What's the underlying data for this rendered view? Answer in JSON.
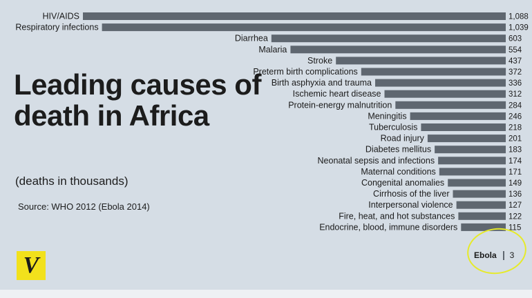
{
  "title": "Leading causes of death in Africa",
  "subtitle": "(deaths in thousands)",
  "source": "Source: WHO 2012 (Ebola 2014)",
  "logo_letter": "V",
  "ebola": {
    "label": "Ebola",
    "value": "3"
  },
  "colors": {
    "background": "#d5dde5",
    "bar": "#5f6770",
    "highlight": "#e6ea2a",
    "logo": "#f2e11c"
  },
  "chart_data": {
    "type": "bar",
    "orientation": "horizontal",
    "title": "Leading causes of death in Africa",
    "unit": "deaths in thousands",
    "categories": [
      "HIV/AIDS",
      "Respiratory infections",
      "Diarrhea",
      "Malaria",
      "Stroke",
      "Preterm birth complications",
      "Birth asphyxia and trauma",
      "Ischemic heart disease",
      "Protein-energy malnutrition",
      "Meningitis",
      "Tuberculosis",
      "Road injury",
      "Diabetes mellitus",
      "Neonatal sepsis and infections",
      "Maternal conditions",
      "Congenital anomalies",
      "Cirrhosis of the liver",
      "Interpersonal violence",
      "Fire, heat, and hot substances",
      "Endocrine, blood, immune disorders"
    ],
    "values": [
      1088,
      1039,
      603,
      554,
      437,
      372,
      336,
      312,
      284,
      246,
      218,
      201,
      183,
      174,
      171,
      149,
      136,
      127,
      122,
      115
    ],
    "value_labels": [
      "1,088",
      "1,039",
      "603",
      "554",
      "437",
      "372",
      "336",
      "312",
      "284",
      "246",
      "218",
      "201",
      "183",
      "174",
      "171",
      "149",
      "136",
      "127",
      "122",
      "115"
    ],
    "highlight": {
      "category": "Ebola",
      "value": 3
    }
  }
}
